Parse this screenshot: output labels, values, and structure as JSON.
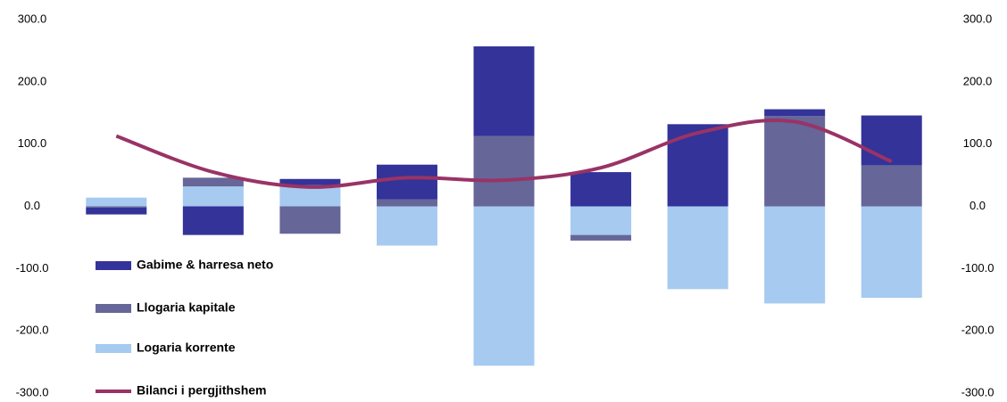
{
  "chart_data": {
    "type": "bar",
    "categories": [
      null,
      null,
      null,
      null,
      null,
      null,
      null,
      null,
      null
    ],
    "series": [
      {
        "name": "Gabime & harresa neto",
        "color": "#333399",
        "values": [
          -11,
          -46,
          10,
          56,
          144,
          55,
          132,
          11,
          80
        ]
      },
      {
        "name": "Llogaria kapitale",
        "color": "#666699",
        "values": [
          -2,
          14,
          -44,
          11,
          113,
          -9,
          0,
          145,
          66
        ]
      },
      {
        "name": "Logaria korrente",
        "color": "#a6caf0",
        "values": [
          14,
          32,
          34,
          -63,
          -256,
          -46,
          -133,
          -156,
          -147
        ]
      },
      {
        "name": "Bilanci i pergjithshem",
        "color": "#993366",
        "type": "line",
        "values": [
          113,
          55,
          31,
          46,
          42,
          62,
          118,
          136,
          72
        ]
      }
    ],
    "ylim": [
      -300,
      300
    ],
    "yticks": [
      {
        "value": -300,
        "label": "-300.0"
      },
      {
        "value": -200,
        "label": "-200.0"
      },
      {
        "value": -100,
        "label": "-100.0"
      },
      {
        "value": 0,
        "label": "0.0"
      },
      {
        "value": 100,
        "label": "100.0"
      },
      {
        "value": 200,
        "label": "200.0"
      },
      {
        "value": 300,
        "label": "300.0"
      }
    ],
    "y2lim": [
      -300,
      300
    ],
    "y2ticks": [
      {
        "value": -300,
        "label": "-300.0"
      },
      {
        "value": -200,
        "label": "-200.0"
      },
      {
        "value": -100,
        "label": "-100.0"
      },
      {
        "value": 0,
        "label": "0.0"
      },
      {
        "value": 100,
        "label": "100.0"
      },
      {
        "value": 200,
        "label": "200.0"
      },
      {
        "value": 300,
        "label": "300.0"
      }
    ]
  }
}
